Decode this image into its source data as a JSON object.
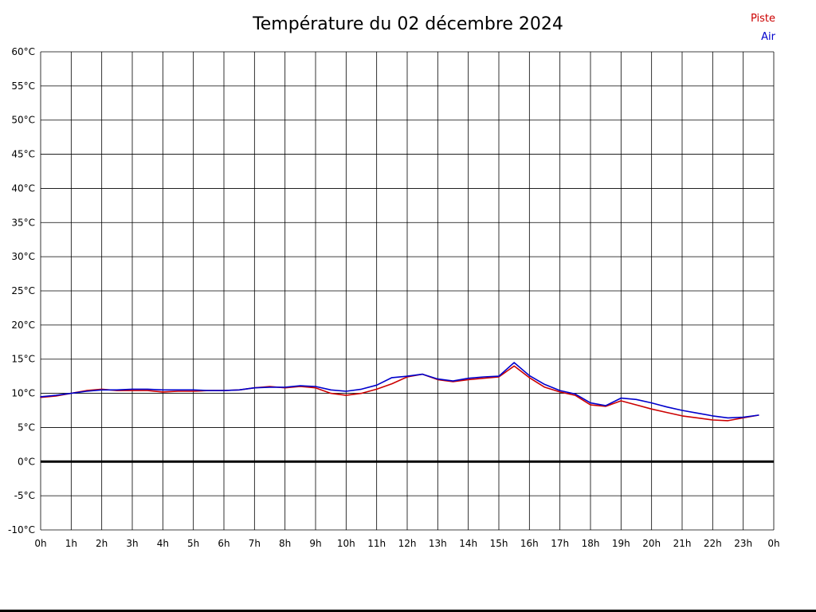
{
  "chart_data": {
    "type": "line",
    "title": "Température du 02 décembre 2024",
    "xlim": [
      0,
      24
    ],
    "ylim": [
      -10,
      60
    ],
    "grid": true,
    "grid_color": "#000000",
    "zero_line_value": 0,
    "legend_position": "top-right",
    "x_ticks": [
      "0h",
      "1h",
      "2h",
      "3h",
      "4h",
      "5h",
      "6h",
      "7h",
      "8h",
      "9h",
      "10h",
      "11h",
      "12h",
      "13h",
      "14h",
      "15h",
      "16h",
      "17h",
      "18h",
      "19h",
      "20h",
      "21h",
      "22h",
      "23h",
      "0h"
    ],
    "y_ticks": [
      "60°C",
      "55°C",
      "50°C",
      "45°C",
      "40°C",
      "35°C",
      "30°C",
      "25°C",
      "20°C",
      "15°C",
      "10°C",
      "5°C",
      "0°C",
      "-5°C",
      "-10°C"
    ],
    "x": [
      0,
      0.5,
      1,
      1.5,
      2,
      2.5,
      3,
      3.5,
      4,
      4.5,
      5,
      5.5,
      6,
      6.5,
      7,
      7.5,
      8,
      8.5,
      9,
      9.5,
      10,
      10.5,
      11,
      11.5,
      12,
      12.5,
      13,
      13.5,
      14,
      14.5,
      15,
      15.5,
      16,
      16.5,
      17,
      17.5,
      18,
      18.5,
      19,
      19.5,
      20,
      20.5,
      21,
      21.5,
      22,
      22.5,
      23,
      23.5
    ],
    "series": [
      {
        "name": "Piste",
        "color": "#cc0000",
        "values": [
          9.4,
          9.6,
          10.0,
          10.4,
          10.6,
          10.4,
          10.4,
          10.4,
          10.2,
          10.3,
          10.3,
          10.4,
          10.4,
          10.5,
          10.8,
          11.0,
          10.8,
          11.0,
          10.8,
          10.0,
          9.7,
          10.0,
          10.6,
          11.4,
          12.4,
          12.8,
          12.0,
          11.7,
          12.0,
          12.2,
          12.4,
          14.0,
          12.3,
          10.9,
          10.2,
          9.7,
          8.3,
          8.1,
          8.9,
          8.3,
          7.7,
          7.2,
          6.7,
          6.4,
          6.1,
          6.0,
          6.4,
          6.8
        ]
      },
      {
        "name": "Air",
        "color": "#0000cc",
        "values": [
          9.5,
          9.7,
          10.0,
          10.3,
          10.5,
          10.5,
          10.6,
          10.6,
          10.5,
          10.5,
          10.5,
          10.4,
          10.4,
          10.5,
          10.8,
          10.9,
          10.9,
          11.1,
          11.0,
          10.5,
          10.3,
          10.6,
          11.2,
          12.3,
          12.5,
          12.8,
          12.1,
          11.8,
          12.2,
          12.4,
          12.5,
          14.5,
          12.6,
          11.3,
          10.4,
          9.9,
          8.6,
          8.2,
          9.3,
          9.1,
          8.6,
          8.0,
          7.5,
          7.1,
          6.7,
          6.4,
          6.5,
          6.8
        ]
      }
    ]
  }
}
